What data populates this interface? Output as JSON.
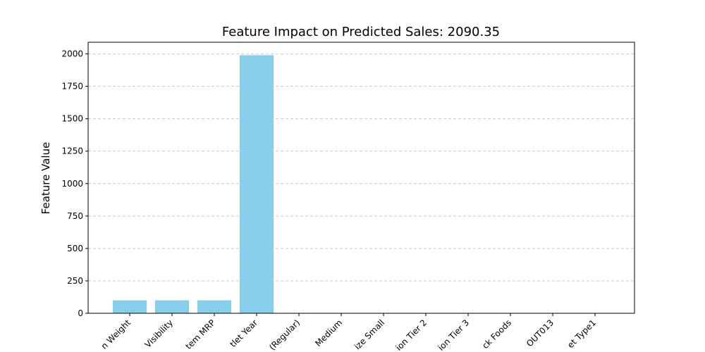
{
  "chart_data": {
    "type": "bar",
    "title": "Feature Impact on Predicted Sales: 2090.35",
    "xlabel": "",
    "ylabel": "Feature Value",
    "categories": [
      "n Weight",
      "Visibility",
      "tem MRP",
      "tlet Year",
      "(Regular)",
      "Medium",
      "ize Small",
      "ion Tier 2",
      "ion Tier 3",
      "ck Foods",
      "OUT013",
      "et Type1"
    ],
    "values": [
      100,
      100,
      100,
      1990,
      0,
      0,
      0,
      0,
      0,
      0,
      0,
      0
    ],
    "ylim": [
      0,
      2090
    ],
    "yticks": [
      0,
      250,
      500,
      750,
      1000,
      1250,
      1500,
      1750,
      2000
    ],
    "grid": "y-dashed",
    "colors": {
      "bar": "#87ceeb",
      "grid": "#c8c8c8",
      "axis": "#000000"
    }
  }
}
